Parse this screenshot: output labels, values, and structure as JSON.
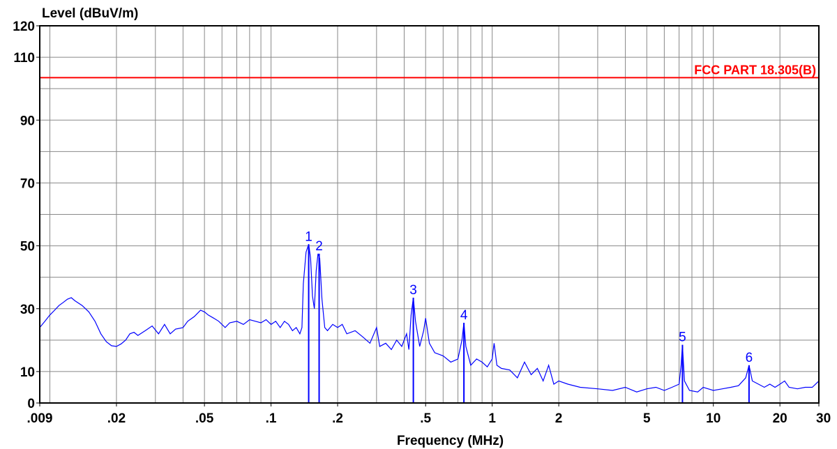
{
  "chart_data": {
    "type": "line",
    "title": "",
    "xlabel": "Frequency (MHz)",
    "ylabel": "Level (dBuV/m)",
    "x_scale": "log",
    "xlim": [
      0.009,
      30
    ],
    "ylim": [
      0,
      120
    ],
    "x_ticks": [
      {
        "value": 0.009,
        "label": ".009"
      },
      {
        "value": 0.02,
        "label": ".02"
      },
      {
        "value": 0.05,
        "label": ".05"
      },
      {
        "value": 0.1,
        "label": ".1"
      },
      {
        "value": 0.2,
        "label": ".2"
      },
      {
        "value": 0.5,
        "label": ".5"
      },
      {
        "value": 1,
        "label": "1"
      },
      {
        "value": 2,
        "label": "2"
      },
      {
        "value": 5,
        "label": "5"
      },
      {
        "value": 10,
        "label": "10"
      },
      {
        "value": 20,
        "label": "20"
      },
      {
        "value": 30,
        "label": "30"
      }
    ],
    "y_ticks": [
      {
        "value": 0,
        "label": "0"
      },
      {
        "value": 10,
        "label": "10"
      },
      {
        "value": 30,
        "label": "30"
      },
      {
        "value": 50,
        "label": "50"
      },
      {
        "value": 70,
        "label": "70"
      },
      {
        "value": 90,
        "label": "90"
      },
      {
        "value": 110,
        "label": "110"
      },
      {
        "value": 120,
        "label": "120"
      }
    ],
    "y_grid": [
      10,
      20,
      30,
      40,
      50,
      60,
      70,
      80,
      90,
      100,
      110
    ],
    "x_grid": [
      0.01,
      0.02,
      0.03,
      0.04,
      0.05,
      0.06,
      0.07,
      0.08,
      0.09,
      0.1,
      0.2,
      0.3,
      0.4,
      0.5,
      0.6,
      0.7,
      0.8,
      0.9,
      1,
      2,
      3,
      4,
      5,
      6,
      7,
      8,
      9,
      10,
      20
    ],
    "grid": true,
    "colors": {
      "trace": "#0000ff",
      "limit": "#ff0000",
      "grid": "#888888",
      "axis": "#000000"
    },
    "limit_line": {
      "label": "FCC PART 18.305(B)",
      "value": 103.5
    },
    "markers": [
      {
        "label": "1",
        "x": 0.148,
        "y": 50.5
      },
      {
        "label": "2",
        "x": 0.165,
        "y": 47.5
      },
      {
        "label": "3",
        "x": 0.44,
        "y": 33.5
      },
      {
        "label": "4",
        "x": 0.745,
        "y": 25.5
      },
      {
        "label": "5",
        "x": 7.25,
        "y": 18.5
      },
      {
        "label": "6",
        "x": 14.5,
        "y": 12
      }
    ],
    "series": [
      {
        "points": [
          [
            0.009,
            24
          ],
          [
            0.0095,
            26
          ],
          [
            0.01,
            28
          ],
          [
            0.0105,
            29.5
          ],
          [
            0.011,
            31
          ],
          [
            0.0115,
            32
          ],
          [
            0.012,
            33
          ],
          [
            0.0125,
            33.5
          ],
          [
            0.013,
            32.5
          ],
          [
            0.014,
            31
          ],
          [
            0.015,
            29
          ],
          [
            0.016,
            26
          ],
          [
            0.017,
            22
          ],
          [
            0.018,
            19.5
          ],
          [
            0.019,
            18.2
          ],
          [
            0.02,
            18
          ],
          [
            0.021,
            18.8
          ],
          [
            0.022,
            20
          ],
          [
            0.023,
            22
          ],
          [
            0.024,
            22.5
          ],
          [
            0.025,
            21.5
          ],
          [
            0.027,
            23
          ],
          [
            0.029,
            24.5
          ],
          [
            0.031,
            22
          ],
          [
            0.033,
            25
          ],
          [
            0.035,
            22
          ],
          [
            0.037,
            23.5
          ],
          [
            0.04,
            24
          ],
          [
            0.042,
            26
          ],
          [
            0.045,
            27.5
          ],
          [
            0.048,
            29.5
          ],
          [
            0.05,
            29
          ],
          [
            0.052,
            28
          ],
          [
            0.055,
            27
          ],
          [
            0.058,
            26
          ],
          [
            0.062,
            24
          ],
          [
            0.065,
            25.5
          ],
          [
            0.07,
            26
          ],
          [
            0.075,
            25
          ],
          [
            0.08,
            26.5
          ],
          [
            0.085,
            26
          ],
          [
            0.09,
            25.5
          ],
          [
            0.095,
            26.5
          ],
          [
            0.1,
            25
          ],
          [
            0.105,
            26
          ],
          [
            0.11,
            24
          ],
          [
            0.115,
            26
          ],
          [
            0.12,
            25
          ],
          [
            0.125,
            23
          ],
          [
            0.13,
            24
          ],
          [
            0.135,
            22
          ],
          [
            0.138,
            24
          ],
          [
            0.14,
            38
          ],
          [
            0.144,
            48
          ],
          [
            0.148,
            50.5
          ],
          [
            0.151,
            46
          ],
          [
            0.154,
            34
          ],
          [
            0.157,
            30
          ],
          [
            0.16,
            42
          ],
          [
            0.163,
            47.5
          ],
          [
            0.166,
            46
          ],
          [
            0.17,
            33
          ],
          [
            0.175,
            24
          ],
          [
            0.18,
            23
          ],
          [
            0.19,
            25
          ],
          [
            0.2,
            24
          ],
          [
            0.21,
            25
          ],
          [
            0.22,
            22
          ],
          [
            0.24,
            23
          ],
          [
            0.26,
            21
          ],
          [
            0.28,
            19
          ],
          [
            0.3,
            24
          ],
          [
            0.31,
            18
          ],
          [
            0.33,
            19
          ],
          [
            0.35,
            17
          ],
          [
            0.37,
            20
          ],
          [
            0.39,
            18
          ],
          [
            0.41,
            22
          ],
          [
            0.42,
            17
          ],
          [
            0.43,
            28
          ],
          [
            0.44,
            33.5
          ],
          [
            0.45,
            26
          ],
          [
            0.47,
            18
          ],
          [
            0.49,
            23
          ],
          [
            0.5,
            27
          ],
          [
            0.52,
            19
          ],
          [
            0.55,
            16
          ],
          [
            0.6,
            15
          ],
          [
            0.65,
            13
          ],
          [
            0.7,
            14
          ],
          [
            0.73,
            20
          ],
          [
            0.745,
            25.5
          ],
          [
            0.76,
            18
          ],
          [
            0.8,
            12
          ],
          [
            0.85,
            14
          ],
          [
            0.9,
            13
          ],
          [
            0.95,
            11.5
          ],
          [
            1,
            14
          ],
          [
            1.02,
            19
          ],
          [
            1.05,
            12
          ],
          [
            1.1,
            11
          ],
          [
            1.2,
            10.5
          ],
          [
            1.3,
            8
          ],
          [
            1.4,
            13
          ],
          [
            1.5,
            9
          ],
          [
            1.6,
            11
          ],
          [
            1.7,
            7
          ],
          [
            1.8,
            12
          ],
          [
            1.9,
            6
          ],
          [
            2,
            7
          ],
          [
            2.2,
            6
          ],
          [
            2.5,
            5
          ],
          [
            3,
            4.5
          ],
          [
            3.5,
            4
          ],
          [
            4,
            5
          ],
          [
            4.5,
            3.5
          ],
          [
            5,
            4.5
          ],
          [
            5.5,
            5
          ],
          [
            6,
            4
          ],
          [
            6.5,
            5
          ],
          [
            7,
            6
          ],
          [
            7.15,
            12
          ],
          [
            7.25,
            18.5
          ],
          [
            7.4,
            7
          ],
          [
            7.8,
            4
          ],
          [
            8.5,
            3.5
          ],
          [
            9,
            5
          ],
          [
            10,
            4
          ],
          [
            11,
            4.5
          ],
          [
            12,
            5
          ],
          [
            13,
            5.5
          ],
          [
            14,
            8
          ],
          [
            14.5,
            12
          ],
          [
            15,
            7
          ],
          [
            16,
            6
          ],
          [
            17,
            5
          ],
          [
            18,
            6
          ],
          [
            19,
            5
          ],
          [
            20,
            6
          ],
          [
            21,
            7
          ],
          [
            22,
            5
          ],
          [
            24,
            4.5
          ],
          [
            26,
            5
          ],
          [
            28,
            5
          ],
          [
            30,
            7
          ]
        ]
      }
    ]
  }
}
